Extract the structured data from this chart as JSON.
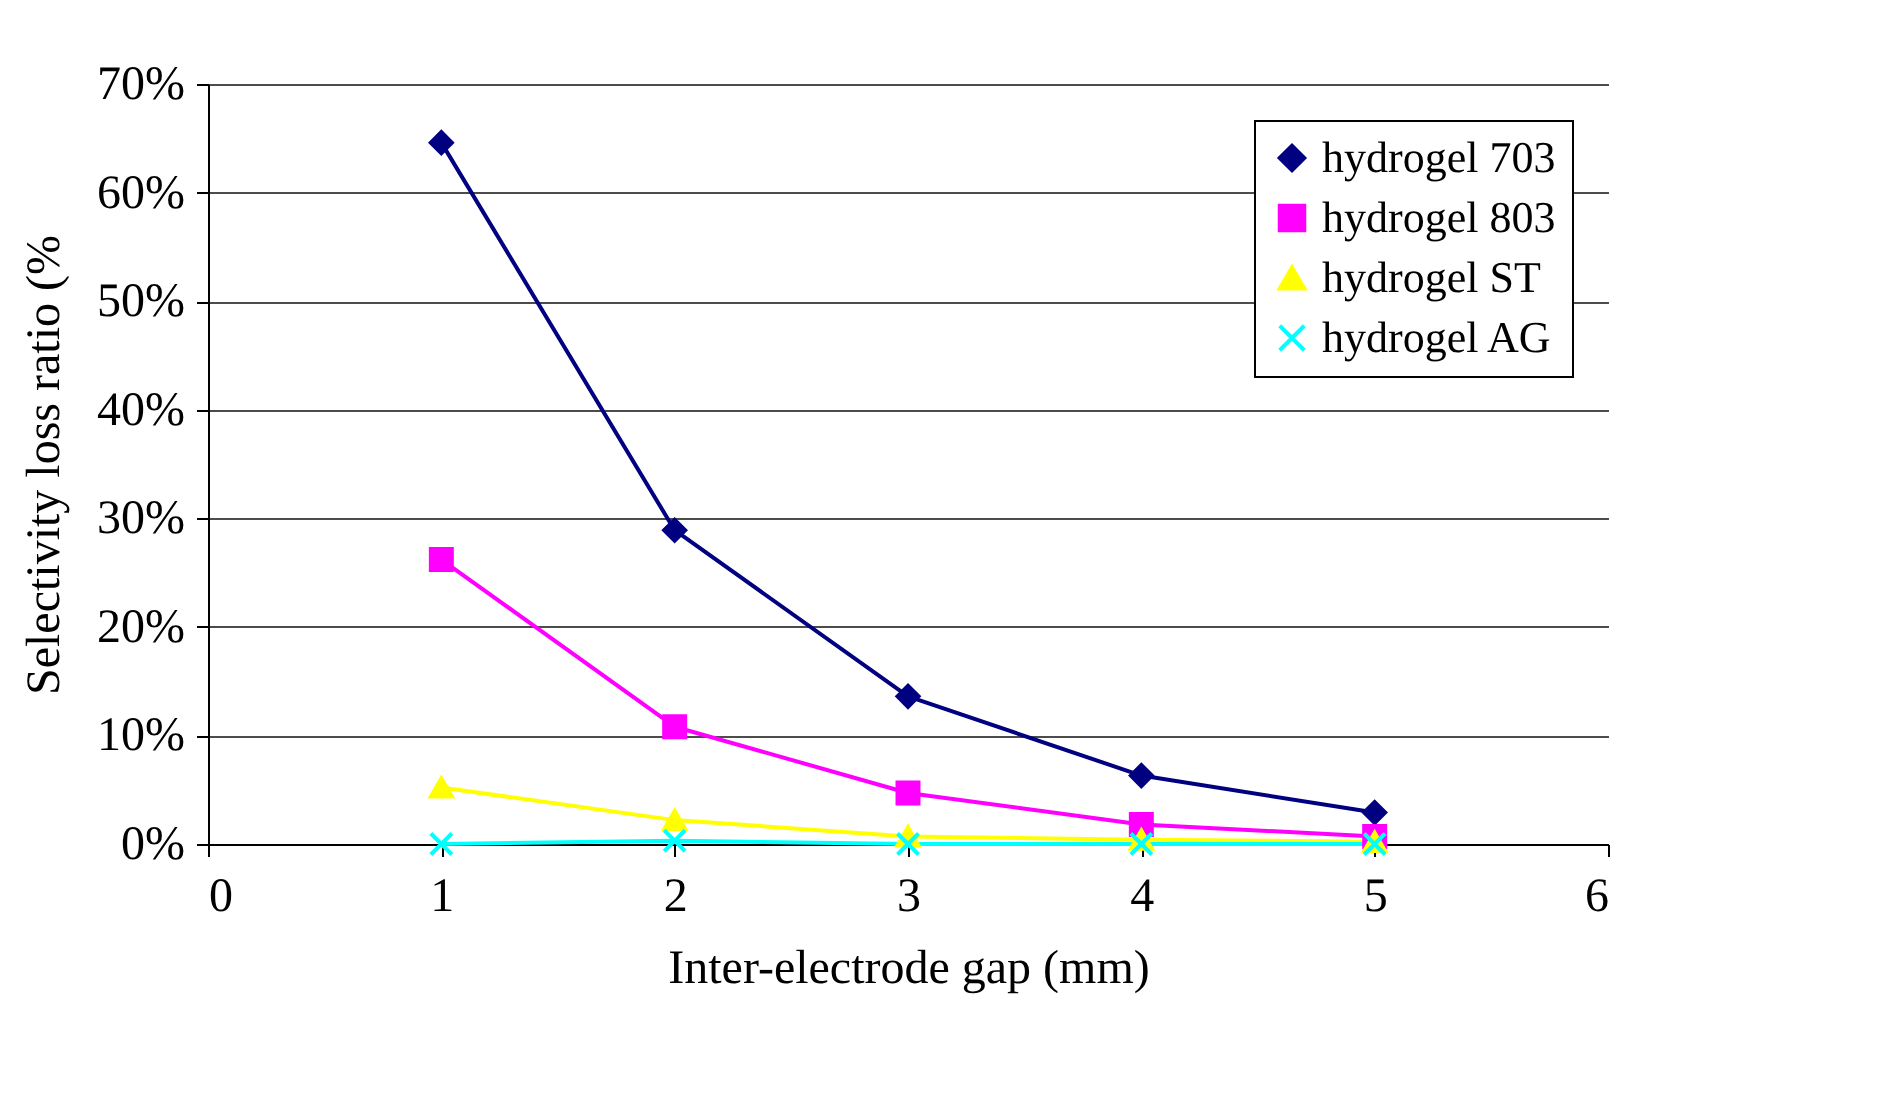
{
  "chart_data": {
    "type": "line",
    "xlabel": "Inter-electrode gap (mm)",
    "ylabel": "Selectivity loss ratio (%",
    "x": [
      1,
      2,
      3,
      4,
      5
    ],
    "series": [
      {
        "name": "hydrogel 703",
        "color": "#000080",
        "marker": "diamond",
        "values": [
          64.6,
          28.9,
          13.6,
          6.3,
          2.9
        ]
      },
      {
        "name": "hydrogel 803",
        "color": "#ff00ff",
        "marker": "square",
        "values": [
          26.2,
          10.8,
          4.7,
          1.8,
          0.7
        ]
      },
      {
        "name": "hydrogel ST",
        "color": "#ffff00",
        "marker": "triangle",
        "values": [
          5.2,
          2.2,
          0.7,
          0.4,
          0.2
        ]
      },
      {
        "name": "hydrogel AG",
        "color": "#00ffff",
        "marker": "cross",
        "values": [
          0,
          0.3,
          0,
          0,
          0
        ]
      }
    ],
    "xlim": [
      0,
      6
    ],
    "xticks": [
      0,
      1,
      2,
      3,
      4,
      5,
      6
    ],
    "ylim": [
      0,
      70
    ],
    "yticks": [
      {
        "value": 0,
        "label": "0%"
      },
      {
        "value": 10,
        "label": "10%"
      },
      {
        "value": 20,
        "label": "20%"
      },
      {
        "value": 30,
        "label": "30%"
      },
      {
        "value": 40,
        "label": "40%"
      },
      {
        "value": 50,
        "label": "50%"
      },
      {
        "value": 60,
        "label": "60%"
      },
      {
        "value": 70,
        "label": "70%"
      }
    ],
    "grid": "y",
    "legend": "top right",
    "line_style": "solid"
  }
}
